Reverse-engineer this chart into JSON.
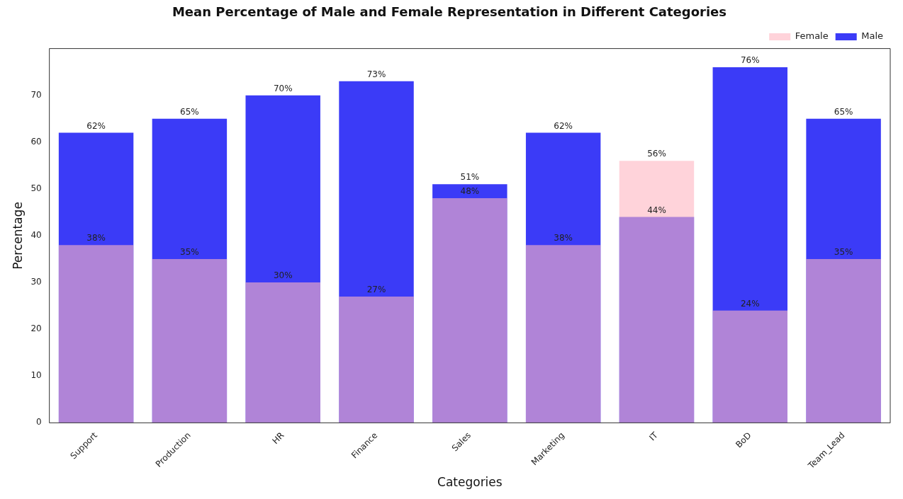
{
  "chart_data": {
    "type": "bar",
    "title": "Mean Percentage of Male and Female Representation in Different Categories",
    "xlabel": "Categories",
    "ylabel": "Percentage",
    "categories": [
      "Support",
      "Production",
      "HR",
      "Finance",
      "Sales",
      "Marketing",
      "IT",
      "BoD",
      "Team_Lead"
    ],
    "series": [
      {
        "name": "Male",
        "color": "#3b3bf7",
        "values": [
          62,
          65,
          70,
          73,
          51,
          62,
          44,
          76,
          65
        ],
        "value_labels": [
          "62%",
          "65%",
          "70%",
          "73%",
          "51%",
          "62%",
          "44%",
          "76%",
          "65%"
        ]
      },
      {
        "name": "Female",
        "color": "#ffb6c1",
        "values": [
          38,
          35,
          30,
          27,
          48,
          38,
          56,
          24,
          35
        ],
        "value_labels": [
          "38%",
          "35%",
          "30%",
          "27%",
          "48%",
          "38%",
          "56%",
          "24%",
          "35%"
        ]
      }
    ],
    "ylim": [
      0,
      80
    ],
    "yticks": [
      0,
      10,
      20,
      30,
      40,
      50,
      60,
      70
    ],
    "legend": "top right",
    "grid": false
  }
}
